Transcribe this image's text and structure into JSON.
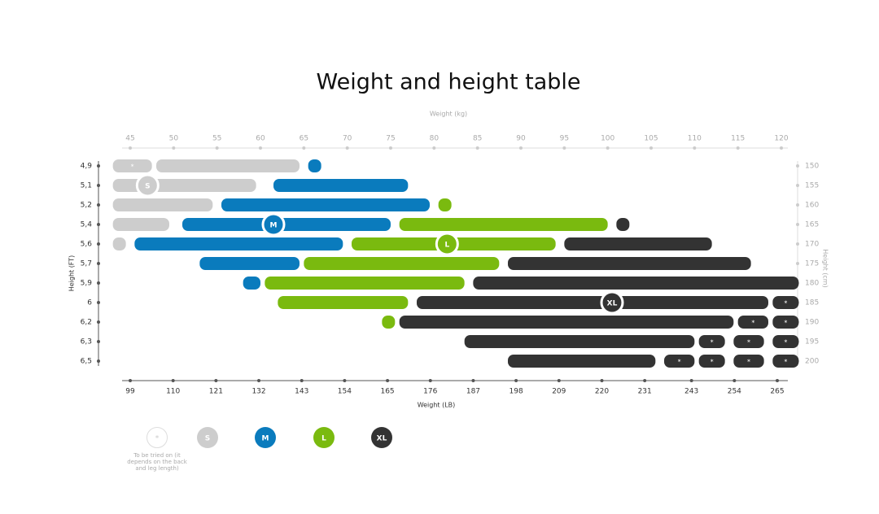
{
  "chart_data": {
    "type": "range-bar",
    "title": "Weight and height table",
    "x_label": "Weight (kg)",
    "xlim": [
      45,
      120
    ],
    "xticks": [
      45,
      50,
      55,
      60,
      65,
      70,
      75,
      80,
      85,
      90,
      95,
      100,
      105,
      110,
      115,
      120
    ],
    "x2_label": "Weight (LB)",
    "x2lim": [
      99,
      265
    ],
    "x2ticks": [
      99,
      110,
      121,
      132,
      143,
      154,
      165,
      176,
      187,
      198,
      209,
      220,
      231,
      243,
      254,
      265
    ],
    "y_label": "Height (FT)",
    "y2_label": "Height (cm)",
    "sizes": [
      {
        "name": "S",
        "color": "#cdcdcd"
      },
      {
        "name": "M",
        "color": "#0a7bbd"
      },
      {
        "name": "L",
        "color": "#7aba0f"
      },
      {
        "name": "XL",
        "color": "#333333"
      }
    ],
    "tbd_symbol": "*",
    "tbd_note": "To be tried on (it depends on the back and leg length)",
    "rows": [
      {
        "ft": "4,9",
        "cm": 150,
        "bars": [
          {
            "size": "S",
            "start": 43,
            "end": 47.5,
            "tbd": true
          },
          {
            "size": "S",
            "start": 48,
            "end": 64.5
          },
          {
            "size": "M",
            "start": 65.5,
            "end": 67
          }
        ]
      },
      {
        "ft": "5,1",
        "cm": 155,
        "bars": [
          {
            "size": "S",
            "start": 43,
            "end": 59.5,
            "label_at": 47
          },
          {
            "size": "M",
            "start": 61.5,
            "end": 77
          }
        ]
      },
      {
        "ft": "5,2",
        "cm": 160,
        "bars": [
          {
            "size": "S",
            "start": 43,
            "end": 54.5
          },
          {
            "size": "M",
            "start": 55.5,
            "end": 79.5
          },
          {
            "size": "L",
            "start": 80.5,
            "end": 82
          }
        ]
      },
      {
        "ft": "5,4",
        "cm": 165,
        "bars": [
          {
            "size": "S",
            "start": 43,
            "end": 49.5
          },
          {
            "size": "M",
            "start": 51,
            "end": 75,
            "label_at": 61.5
          },
          {
            "size": "L",
            "start": 76,
            "end": 100
          },
          {
            "size": "XL",
            "start": 101,
            "end": 102.5
          }
        ]
      },
      {
        "ft": "5,6",
        "cm": 170,
        "bars": [
          {
            "size": "S",
            "start": 43,
            "end": 44.5
          },
          {
            "size": "M",
            "start": 45.5,
            "end": 69.5
          },
          {
            "size": "L",
            "start": 70.5,
            "end": 94,
            "label_at": 81.5
          },
          {
            "size": "XL",
            "start": 95,
            "end": 112
          }
        ]
      },
      {
        "ft": "5,7",
        "cm": 175,
        "bars": [
          {
            "size": "M",
            "start": 53,
            "end": 64.5
          },
          {
            "size": "L",
            "start": 65,
            "end": 87.5
          },
          {
            "size": "XL",
            "start": 88.5,
            "end": 116.5
          }
        ]
      },
      {
        "ft": "5,9",
        "cm": 180,
        "bars": [
          {
            "size": "M",
            "start": 58,
            "end": 60
          },
          {
            "size": "L",
            "start": 60.5,
            "end": 83.5
          },
          {
            "size": "XL",
            "start": 84.5,
            "end": 122
          }
        ]
      },
      {
        "ft": "6",
        "cm": 185,
        "bars": [
          {
            "size": "L",
            "start": 62,
            "end": 77
          },
          {
            "size": "XL",
            "start": 78,
            "end": 118.5,
            "label_at": 100.5
          },
          {
            "size": "XL",
            "start": 119,
            "end": 122,
            "tbd": true
          }
        ]
      },
      {
        "ft": "6,2",
        "cm": 190,
        "bars": [
          {
            "size": "L",
            "start": 74,
            "end": 75.5
          },
          {
            "size": "XL",
            "start": 76,
            "end": 114.5
          },
          {
            "size": "XL",
            "start": 115,
            "end": 118.5,
            "tbd": true
          },
          {
            "size": "XL",
            "start": 119,
            "end": 122,
            "tbd": true
          }
        ]
      },
      {
        "ft": "6,3",
        "cm": 195,
        "bars": [
          {
            "size": "XL",
            "start": 83.5,
            "end": 110
          },
          {
            "size": "XL",
            "start": 110.5,
            "end": 113.5,
            "tbd": true
          },
          {
            "size": "XL",
            "start": 114.5,
            "end": 118,
            "tbd": true
          },
          {
            "size": "XL",
            "start": 119,
            "end": 122,
            "tbd": true
          }
        ]
      },
      {
        "ft": "6,5",
        "cm": 200,
        "bars": [
          {
            "size": "XL",
            "start": 88.5,
            "end": 105.5
          },
          {
            "size": "XL",
            "start": 106.5,
            "end": 110,
            "tbd": true
          },
          {
            "size": "XL",
            "start": 110.5,
            "end": 113.5,
            "tbd": true
          },
          {
            "size": "XL",
            "start": 114.5,
            "end": 118,
            "tbd": true
          },
          {
            "size": "XL",
            "start": 119,
            "end": 122,
            "tbd": true
          }
        ]
      }
    ]
  }
}
